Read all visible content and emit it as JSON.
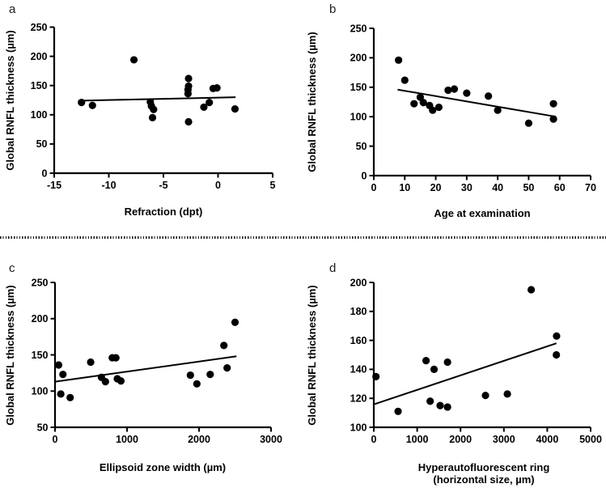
{
  "figure": {
    "background_color": "#ffffff",
    "ink_color": "#000000",
    "divider_style": "dotted-horizontal-line"
  },
  "chart_data": [
    {
      "id": "a",
      "panel_label": "a",
      "type": "scatter",
      "xlabel": "Refraction (dpt)",
      "ylabel": "Global RNFL thickness (µm)",
      "xlim": [
        -15,
        5
      ],
      "ylim": [
        0,
        250
      ],
      "xticks": [
        -15,
        -10,
        -5,
        0,
        5
      ],
      "yticks": [
        0,
        50,
        100,
        150,
        200,
        250
      ],
      "grid": false,
      "legend": null,
      "points": [
        [
          -12.5,
          121
        ],
        [
          -11.5,
          116
        ],
        [
          -7.7,
          194
        ],
        [
          -6.2,
          122
        ],
        [
          -6.1,
          115
        ],
        [
          -5.9,
          109
        ],
        [
          -6.0,
          95
        ],
        [
          -2.7,
          162
        ],
        [
          -2.7,
          149
        ],
        [
          -2.75,
          143
        ],
        [
          -2.75,
          136
        ],
        [
          -2.7,
          88
        ],
        [
          -1.3,
          113
        ],
        [
          -0.8,
          121
        ],
        [
          -0.45,
          145
        ],
        [
          -0.1,
          146
        ],
        [
          1.55,
          110
        ]
      ],
      "trendline": {
        "x1": -12.8,
        "y1": 124,
        "x2": 1.6,
        "y2": 130
      }
    },
    {
      "id": "b",
      "panel_label": "b",
      "type": "scatter",
      "xlabel": "Age at examination",
      "ylabel": "Global RNFL thickness (µm)",
      "xlim": [
        0,
        70
      ],
      "ylim": [
        0,
        250
      ],
      "xticks": [
        0,
        10,
        20,
        30,
        40,
        50,
        60,
        70
      ],
      "yticks": [
        0,
        50,
        100,
        150,
        200,
        250
      ],
      "grid": false,
      "legend": null,
      "points": [
        [
          8,
          196
        ],
        [
          10,
          162
        ],
        [
          13,
          122
        ],
        [
          15,
          133
        ],
        [
          16,
          124
        ],
        [
          18,
          119
        ],
        [
          19,
          111
        ],
        [
          21,
          116
        ],
        [
          24,
          145
        ],
        [
          26,
          147
        ],
        [
          30,
          140
        ],
        [
          37,
          135
        ],
        [
          40,
          111
        ],
        [
          50,
          89
        ],
        [
          58,
          122
        ],
        [
          58,
          96
        ]
      ],
      "trendline": {
        "x1": 7.7,
        "y1": 146,
        "x2": 58.8,
        "y2": 100
      }
    },
    {
      "id": "c",
      "panel_label": "c",
      "type": "scatter",
      "xlabel": "Ellipsoid zone width (µm)",
      "ylabel": "Global RNFL thickness (µm)",
      "xlim": [
        0,
        3000
      ],
      "ylim": [
        50,
        250
      ],
      "xticks": [
        0,
        1000,
        2000,
        3000
      ],
      "yticks": [
        50,
        100,
        150,
        200,
        250
      ],
      "grid": false,
      "legend": null,
      "points": [
        [
          50,
          136
        ],
        [
          110,
          123
        ],
        [
          80,
          96
        ],
        [
          210,
          91
        ],
        [
          495,
          140
        ],
        [
          645,
          119
        ],
        [
          700,
          113
        ],
        [
          795,
          146
        ],
        [
          845,
          146
        ],
        [
          865,
          117
        ],
        [
          915,
          114
        ],
        [
          1880,
          122
        ],
        [
          1970,
          110
        ],
        [
          2155,
          123
        ],
        [
          2345,
          163
        ],
        [
          2390,
          132
        ],
        [
          2500,
          195
        ]
      ],
      "trendline": {
        "x1": 0,
        "y1": 113,
        "x2": 2520,
        "y2": 148
      }
    },
    {
      "id": "d",
      "panel_label": "d",
      "type": "scatter",
      "xlabel": "Hyperautofluorescent ring",
      "xlabel_line2": "(horizontal size, µm)",
      "ylabel": "Global RNFL thickness (µm)",
      "xlim": [
        0,
        5000
      ],
      "ylim": [
        100,
        200
      ],
      "xticks": [
        0,
        1000,
        2000,
        3000,
        4000,
        5000
      ],
      "yticks": [
        100,
        120,
        140,
        160,
        180,
        200
      ],
      "grid": false,
      "legend": null,
      "points": [
        [
          50,
          135
        ],
        [
          560,
          111
        ],
        [
          1205,
          146
        ],
        [
          1300,
          118
        ],
        [
          1390,
          140
        ],
        [
          1530,
          115
        ],
        [
          1700,
          145
        ],
        [
          1700,
          114
        ],
        [
          2575,
          122
        ],
        [
          3080,
          123
        ],
        [
          3630,
          195
        ],
        [
          4215,
          163
        ],
        [
          4210,
          150
        ]
      ],
      "trendline": {
        "x1": 20,
        "y1": 116,
        "x2": 4210,
        "y2": 158
      }
    }
  ]
}
